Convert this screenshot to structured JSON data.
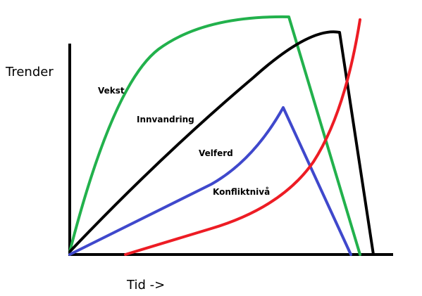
{
  "axes": {
    "y_label": "Trender",
    "x_label": "Tid ->"
  },
  "curves": {
    "vekst": {
      "label": "Vekst",
      "color": "#22b14c"
    },
    "innvandring": {
      "label": "Innvandring",
      "color": "#000000"
    },
    "velferd": {
      "label": "Velferd",
      "color": "#3f48cc"
    },
    "konfliktniva": {
      "label": "Konfliktnivå",
      "color": "#ed1c24"
    }
  }
}
